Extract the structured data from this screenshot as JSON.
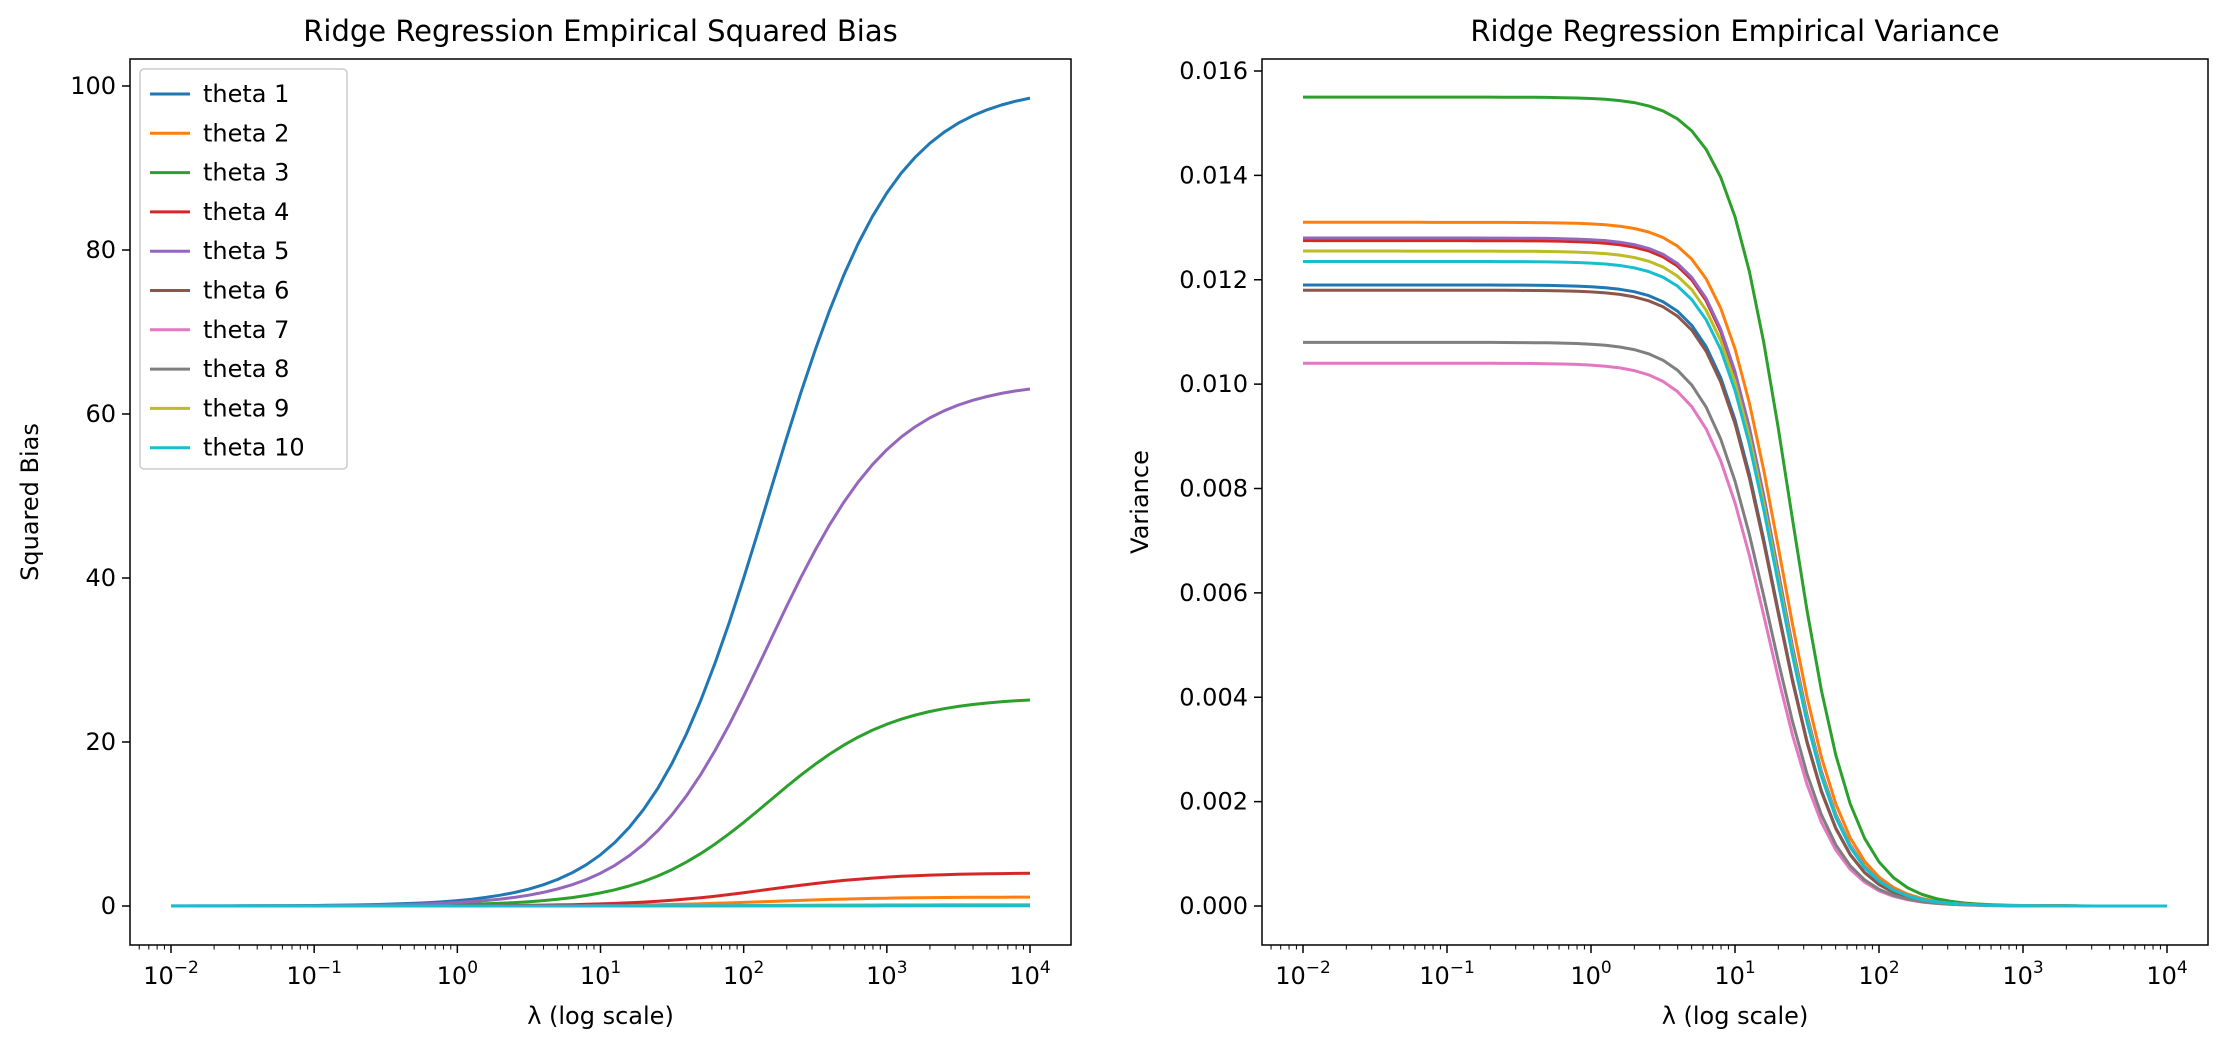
{
  "colors": [
    "#1f77b4",
    "#ff7f0e",
    "#2ca02c",
    "#d62728",
    "#9467bd",
    "#8c564b",
    "#e377c2",
    "#7f7f7f",
    "#bcbd22",
    "#17becf"
  ],
  "legend": {
    "placement": "upper-left",
    "entries": [
      "theta 1",
      "theta 2",
      "theta 3",
      "theta 4",
      "theta 5",
      "theta 6",
      "theta 7",
      "theta 8",
      "theta 9",
      "theta 10"
    ]
  },
  "chart_data": [
    {
      "type": "line",
      "title": "Ridge Regression Empirical Squared Bias",
      "xlabel": "λ (log scale)",
      "ylabel": "Squared Bias",
      "xscale": "log",
      "xlim": [
        0.01,
        10000
      ],
      "ylim": [
        0,
        100
      ],
      "yticks": [
        0,
        20,
        40,
        60,
        80,
        100
      ],
      "ytick_labels": [
        "0",
        "20",
        "40",
        "60",
        "80",
        "100"
      ],
      "xtick_exponents": [
        "−2",
        "−1",
        "0",
        "1",
        "2",
        "3",
        "4"
      ],
      "legend": true,
      "grid": false,
      "model": "sigmoid-in-lambda",
      "series": [
        {
          "name": "theta 1",
          "plateau": 100,
          "half_lambda": 150
        },
        {
          "name": "theta 2",
          "plateau": 1.1,
          "half_lambda": 150
        },
        {
          "name": "theta 3",
          "plateau": 25.5,
          "half_lambda": 150
        },
        {
          "name": "theta 4",
          "plateau": 4.05,
          "half_lambda": 150
        },
        {
          "name": "theta 5",
          "plateau": 64,
          "half_lambda": 150
        },
        {
          "name": "theta 6",
          "plateau": 0.1,
          "half_lambda": 150
        },
        {
          "name": "theta 7",
          "plateau": 0.15,
          "half_lambda": 150
        },
        {
          "name": "theta 8",
          "plateau": 0.05,
          "half_lambda": 150
        },
        {
          "name": "theta 9",
          "plateau": 0.05,
          "half_lambda": 150
        },
        {
          "name": "theta 10",
          "plateau": 0.05,
          "half_lambda": 150
        }
      ]
    },
    {
      "type": "line",
      "title": "Ridge Regression Empirical Variance",
      "xlabel": "λ (log scale)",
      "ylabel": "Variance",
      "xscale": "log",
      "xlim": [
        0.01,
        10000
      ],
      "ylim": [
        0,
        0.016
      ],
      "yticks": [
        0,
        0.002,
        0.004,
        0.006,
        0.008,
        0.01,
        0.012,
        0.014,
        0.016
      ],
      "ytick_labels": [
        "0.000",
        "0.002",
        "0.004",
        "0.006",
        "0.008",
        "0.010",
        "0.012",
        "0.014",
        "0.016"
      ],
      "xtick_exponents": [
        "−2",
        "−1",
        "0",
        "1",
        "2",
        "3",
        "4"
      ],
      "legend": false,
      "grid": false,
      "model": "decay-in-lambda",
      "series": [
        {
          "name": "theta 1",
          "start": 0.0119,
          "scale": 19
        },
        {
          "name": "theta 2",
          "start": 0.0131,
          "scale": 21
        },
        {
          "name": "theta 3",
          "start": 0.0155,
          "scale": 24
        },
        {
          "name": "theta 4",
          "start": 0.01275,
          "scale": 20
        },
        {
          "name": "theta 5",
          "start": 0.0128,
          "scale": 20
        },
        {
          "name": "theta 6",
          "start": 0.0118,
          "scale": 19
        },
        {
          "name": "theta 7",
          "start": 0.0104,
          "scale": 17
        },
        {
          "name": "theta 8",
          "start": 0.0108,
          "scale": 17.5
        },
        {
          "name": "theta 9",
          "start": 0.01255,
          "scale": 20
        },
        {
          "name": "theta 10",
          "start": 0.01235,
          "scale": 20
        }
      ]
    }
  ]
}
